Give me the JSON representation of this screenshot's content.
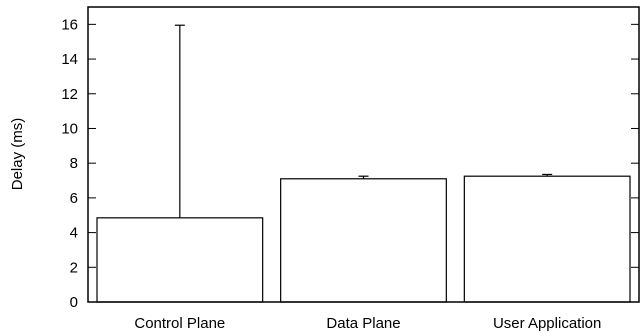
{
  "chart_data": {
    "type": "bar",
    "ylabel": "Delay (ms)",
    "xlabel": "",
    "ylim": [
      0,
      17
    ],
    "yticks": [
      0,
      2,
      4,
      6,
      8,
      10,
      12,
      14,
      16
    ],
    "categories": [
      "Control Plane",
      "Data Plane",
      "User Application"
    ],
    "values": [
      4.85,
      7.1,
      7.25
    ],
    "error_upper": [
      15.95,
      7.25,
      7.35
    ],
    "grid": false,
    "colors": {
      "bar_fill": "#ffffff",
      "stroke": "#000000"
    }
  }
}
